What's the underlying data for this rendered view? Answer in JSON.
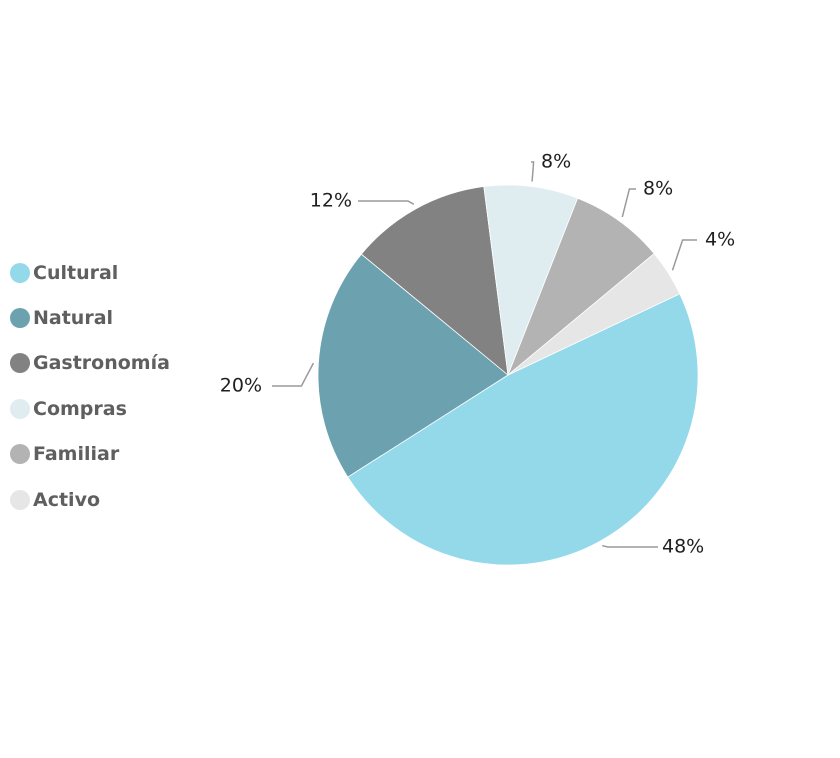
{
  "chart_data": {
    "type": "pie",
    "categories": [
      "Cultural",
      "Natural",
      "Gastronomía",
      "Compras",
      "Familiar",
      "Activo"
    ],
    "values": [
      48,
      20,
      12,
      8,
      8,
      4
    ],
    "labels": [
      "48%",
      "20%",
      "12%",
      "8%",
      "8%",
      "4%"
    ],
    "colors": [
      "#93d9ea",
      "#6ca2b0",
      "#828282",
      "#dfecf0",
      "#b3b3b3",
      "#e6e6e6"
    ],
    "legend_position": "left",
    "title": ""
  }
}
